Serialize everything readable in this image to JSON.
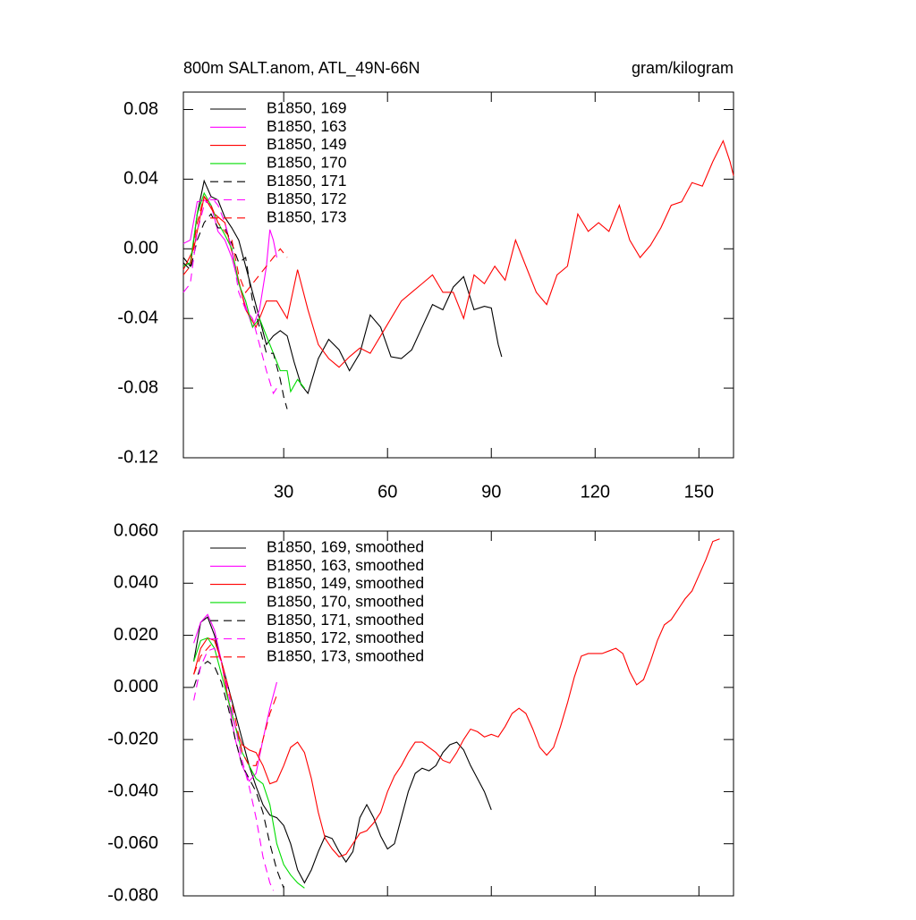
{
  "chart_data": [
    {
      "type": "line",
      "title": "800m SALT.anom, ATL_49N-66N",
      "right_title": "gram/kilogram",
      "xlim": [
        1,
        160
      ],
      "xticks": [
        30,
        60,
        90,
        120,
        150
      ],
      "x_tick_labels_shown": true,
      "ylim": [
        -0.12,
        0.09
      ],
      "yticks": [
        0.08,
        0.04,
        {
          "value": 0,
          "label": "0.00"
        },
        -0.04,
        -0.08,
        -0.12
      ],
      "legend": "upper left",
      "series": [
        {
          "name": "B1850, 169",
          "color": "#000000",
          "dash": false,
          "x": [
            1,
            3,
            5,
            7,
            9,
            11,
            13,
            15,
            17,
            19,
            21,
            23,
            25,
            27,
            29,
            31,
            33,
            35,
            37,
            40,
            43,
            46,
            49,
            52,
            55,
            58,
            61,
            64,
            67,
            70,
            73,
            76,
            79,
            82,
            85,
            88,
            90,
            92,
            93
          ],
          "values": [
            -0.005,
            -0.01,
            0.02,
            0.039,
            0.03,
            0.028,
            0.018,
            0.012,
            0.005,
            -0.01,
            -0.025,
            -0.04,
            -0.055,
            -0.05,
            -0.047,
            -0.05,
            -0.065,
            -0.078,
            -0.083,
            -0.063,
            -0.052,
            -0.058,
            -0.07,
            -0.06,
            -0.038,
            -0.045,
            -0.062,
            -0.063,
            -0.058,
            -0.045,
            -0.032,
            -0.035,
            -0.022,
            -0.016,
            -0.035,
            -0.033,
            -0.034,
            -0.055,
            -0.062
          ]
        },
        {
          "name": "B1850, 163",
          "color": "#ff00ff",
          "dash": false,
          "x": [
            1,
            3,
            5,
            7,
            9,
            11,
            13,
            15,
            17,
            19,
            21,
            23,
            25,
            26,
            27,
            28
          ],
          "values": [
            0.003,
            0.005,
            0.027,
            0.028,
            0.025,
            0.01,
            0.005,
            -0.005,
            -0.02,
            -0.033,
            -0.045,
            -0.035,
            -0.01,
            0.011,
            0.005,
            -0.005
          ]
        },
        {
          "name": "B1850, 149",
          "color": "#ff0000",
          "dash": false,
          "x": [
            1,
            4,
            7,
            10,
            13,
            16,
            19,
            22,
            25,
            28,
            31,
            34,
            37,
            40,
            43,
            46,
            49,
            52,
            55,
            58,
            61,
            64,
            67,
            70,
            73,
            76,
            79,
            82,
            85,
            88,
            91,
            94,
            97,
            100,
            103,
            106,
            109,
            112,
            115,
            118,
            121,
            124,
            127,
            130,
            133,
            136,
            139,
            142,
            145,
            148,
            151,
            154,
            157,
            159,
            160
          ],
          "values": [
            -0.012,
            0.0,
            0.03,
            0.02,
            0.015,
            -0.01,
            -0.035,
            -0.045,
            -0.03,
            -0.03,
            -0.04,
            -0.012,
            -0.035,
            -0.055,
            -0.063,
            -0.068,
            -0.062,
            -0.057,
            -0.06,
            -0.05,
            -0.04,
            -0.03,
            -0.025,
            -0.02,
            -0.015,
            -0.025,
            -0.025,
            -0.04,
            -0.015,
            -0.02,
            -0.01,
            -0.018,
            0.005,
            -0.01,
            -0.025,
            -0.032,
            -0.015,
            -0.01,
            0.02,
            0.01,
            0.015,
            0.01,
            0.025,
            0.005,
            -0.005,
            0.002,
            0.012,
            0.025,
            0.027,
            0.038,
            0.036,
            0.05,
            0.062,
            0.05,
            0.042
          ]
        },
        {
          "name": "B1850, 170",
          "color": "#00dd00",
          "dash": false,
          "x": [
            1,
            3,
            5,
            7,
            9,
            11,
            13,
            15,
            17,
            19,
            21,
            23,
            25,
            27,
            29,
            31,
            32,
            34,
            36
          ],
          "values": [
            -0.01,
            -0.008,
            0.02,
            0.032,
            0.025,
            0.015,
            0.008,
            0.0,
            -0.02,
            -0.03,
            -0.045,
            -0.04,
            -0.05,
            -0.06,
            -0.07,
            -0.07,
            -0.082,
            -0.075,
            -0.08
          ]
        },
        {
          "name": "B1850, 171",
          "color": "#000000",
          "dash": true,
          "x": [
            1,
            3,
            5,
            7,
            9,
            11,
            13,
            15,
            17,
            19,
            21,
            23,
            25,
            27,
            29,
            30,
            31
          ],
          "values": [
            -0.008,
            -0.012,
            0.005,
            0.015,
            0.02,
            0.012,
            0.012,
            0.003,
            -0.008,
            -0.005,
            -0.03,
            -0.045,
            -0.06,
            -0.06,
            -0.075,
            -0.085,
            -0.092
          ]
        },
        {
          "name": "B1850, 172",
          "color": "#ff00ff",
          "dash": true,
          "x": [
            1,
            3,
            5,
            7,
            9,
            11,
            13,
            15,
            17,
            19,
            21,
            23,
            25,
            27,
            28
          ],
          "values": [
            -0.025,
            -0.02,
            0.01,
            0.025,
            0.03,
            0.025,
            0.015,
            0.0,
            -0.025,
            -0.035,
            -0.04,
            -0.055,
            -0.07,
            -0.083,
            -0.08
          ]
        },
        {
          "name": "B1850, 173",
          "color": "#ff0000",
          "dash": true,
          "x": [
            1,
            3,
            5,
            7,
            9,
            11,
            13,
            15,
            17,
            19,
            21,
            23,
            25,
            27,
            29,
            31
          ],
          "values": [
            -0.015,
            -0.01,
            0.015,
            0.03,
            0.025,
            0.015,
            0.01,
            0.005,
            -0.015,
            -0.025,
            -0.02,
            -0.015,
            -0.01,
            -0.005,
            0.0,
            -0.005
          ]
        }
      ]
    },
    {
      "type": "line",
      "xlim": [
        1,
        160
      ],
      "xticks": [
        30,
        60,
        90,
        120,
        150
      ],
      "x_tick_labels_shown": false,
      "ylim": [
        -0.08,
        0.06
      ],
      "yticks": [
        {
          "value": 0.06,
          "label": "0.060"
        },
        {
          "value": 0.04,
          "label": "0.040"
        },
        {
          "value": 0.02,
          "label": "0.020"
        },
        {
          "value": 0,
          "label": "0.000"
        },
        {
          "value": -0.02,
          "label": "-0.020"
        },
        {
          "value": -0.04,
          "label": "-0.040"
        },
        {
          "value": -0.06,
          "label": "-0.060"
        },
        {
          "value": -0.08,
          "label": "-0.080"
        }
      ],
      "legend": "upper left",
      "series": [
        {
          "name": "B1850, 169, smoothed",
          "color": "#000000",
          "dash": false,
          "x": [
            4,
            6,
            8,
            10,
            12,
            14,
            16,
            18,
            20,
            22,
            24,
            26,
            28,
            30,
            32,
            34,
            36,
            38,
            40,
            42,
            44,
            46,
            48,
            50,
            52,
            54,
            56,
            58,
            60,
            62,
            64,
            66,
            68,
            70,
            72,
            74,
            76,
            78,
            80,
            82,
            84,
            86,
            88,
            90
          ],
          "values": [
            0.01,
            0.025,
            0.027,
            0.02,
            0.01,
            0.0,
            -0.01,
            -0.02,
            -0.03,
            -0.038,
            -0.045,
            -0.049,
            -0.05,
            -0.053,
            -0.06,
            -0.07,
            -0.075,
            -0.07,
            -0.063,
            -0.057,
            -0.058,
            -0.063,
            -0.067,
            -0.063,
            -0.05,
            -0.045,
            -0.05,
            -0.057,
            -0.062,
            -0.06,
            -0.05,
            -0.04,
            -0.033,
            -0.031,
            -0.032,
            -0.03,
            -0.025,
            -0.022,
            -0.021,
            -0.024,
            -0.03,
            -0.035,
            -0.04,
            -0.047
          ]
        },
        {
          "name": "B1850, 163, smoothed",
          "color": "#ff00ff",
          "dash": false,
          "x": [
            4,
            6,
            8,
            10,
            12,
            14,
            16,
            18,
            20,
            22,
            24,
            26,
            28
          ],
          "values": [
            0.017,
            0.025,
            0.028,
            0.022,
            0.01,
            -0.005,
            -0.02,
            -0.03,
            -0.036,
            -0.033,
            -0.02,
            -0.008,
            0.002
          ]
        },
        {
          "name": "B1850, 149, smoothed",
          "color": "#ff0000",
          "dash": false,
          "x": [
            4,
            6,
            8,
            10,
            12,
            14,
            16,
            18,
            20,
            22,
            24,
            26,
            28,
            30,
            32,
            34,
            36,
            38,
            40,
            42,
            44,
            46,
            48,
            50,
            52,
            54,
            56,
            58,
            60,
            62,
            64,
            66,
            68,
            70,
            72,
            74,
            76,
            78,
            80,
            82,
            84,
            86,
            88,
            90,
            92,
            94,
            96,
            98,
            100,
            102,
            104,
            106,
            108,
            110,
            112,
            114,
            116,
            118,
            120,
            122,
            124,
            126,
            128,
            130,
            132,
            134,
            136,
            138,
            140,
            142,
            144,
            146,
            148,
            150,
            152,
            154,
            156
          ],
          "values": [
            0.005,
            0.015,
            0.019,
            0.018,
            0.01,
            -0.005,
            -0.015,
            -0.022,
            -0.024,
            -0.025,
            -0.03,
            -0.037,
            -0.036,
            -0.03,
            -0.023,
            -0.021,
            -0.025,
            -0.035,
            -0.048,
            -0.058,
            -0.062,
            -0.065,
            -0.064,
            -0.06,
            -0.056,
            -0.055,
            -0.052,
            -0.048,
            -0.04,
            -0.034,
            -0.03,
            -0.025,
            -0.021,
            -0.021,
            -0.023,
            -0.025,
            -0.028,
            -0.029,
            -0.025,
            -0.02,
            -0.016,
            -0.017,
            -0.019,
            -0.018,
            -0.019,
            -0.015,
            -0.01,
            -0.008,
            -0.01,
            -0.016,
            -0.023,
            -0.026,
            -0.023,
            -0.015,
            -0.006,
            0.004,
            0.012,
            0.013,
            0.013,
            0.013,
            0.014,
            0.015,
            0.013,
            0.006,
            0.001,
            0.003,
            0.01,
            0.018,
            0.024,
            0.026,
            0.03,
            0.034,
            0.037,
            0.043,
            0.049,
            0.056,
            0.057
          ]
        },
        {
          "name": "B1850, 170, smoothed",
          "color": "#00dd00",
          "dash": false,
          "x": [
            4,
            6,
            8,
            10,
            12,
            14,
            16,
            18,
            20,
            22,
            24,
            26,
            28,
            30,
            32,
            34,
            36
          ],
          "values": [
            0.01,
            0.018,
            0.019,
            0.015,
            0.005,
            -0.005,
            -0.015,
            -0.025,
            -0.03,
            -0.035,
            -0.037,
            -0.045,
            -0.06,
            -0.068,
            -0.072,
            -0.075,
            -0.077
          ]
        },
        {
          "name": "B1850, 171, smoothed",
          "color": "#000000",
          "dash": true,
          "x": [
            4,
            6,
            8,
            10,
            12,
            14,
            16,
            18,
            20,
            22,
            24,
            26,
            28,
            30
          ],
          "values": [
            0.0,
            0.008,
            0.01,
            0.008,
            0.002,
            -0.008,
            -0.02,
            -0.03,
            -0.035,
            -0.04,
            -0.048,
            -0.06,
            -0.07,
            -0.077
          ]
        },
        {
          "name": "B1850, 172, smoothed",
          "color": "#ff00ff",
          "dash": true,
          "x": [
            4,
            6,
            8,
            10,
            12,
            14,
            16,
            18,
            20,
            22,
            24,
            26,
            27
          ],
          "values": [
            -0.005,
            0.008,
            0.014,
            0.015,
            0.01,
            -0.002,
            -0.015,
            -0.028,
            -0.038,
            -0.05,
            -0.065,
            -0.075,
            -0.078
          ]
        },
        {
          "name": "B1850, 173, smoothed",
          "color": "#ff0000",
          "dash": true,
          "x": [
            4,
            6,
            8,
            10,
            12,
            14,
            16,
            18,
            20,
            22,
            24,
            26,
            28
          ],
          "values": [
            0.005,
            0.012,
            0.015,
            0.018,
            0.01,
            0.0,
            -0.012,
            -0.025,
            -0.03,
            -0.03,
            -0.02,
            -0.01,
            -0.003
          ]
        }
      ]
    }
  ]
}
